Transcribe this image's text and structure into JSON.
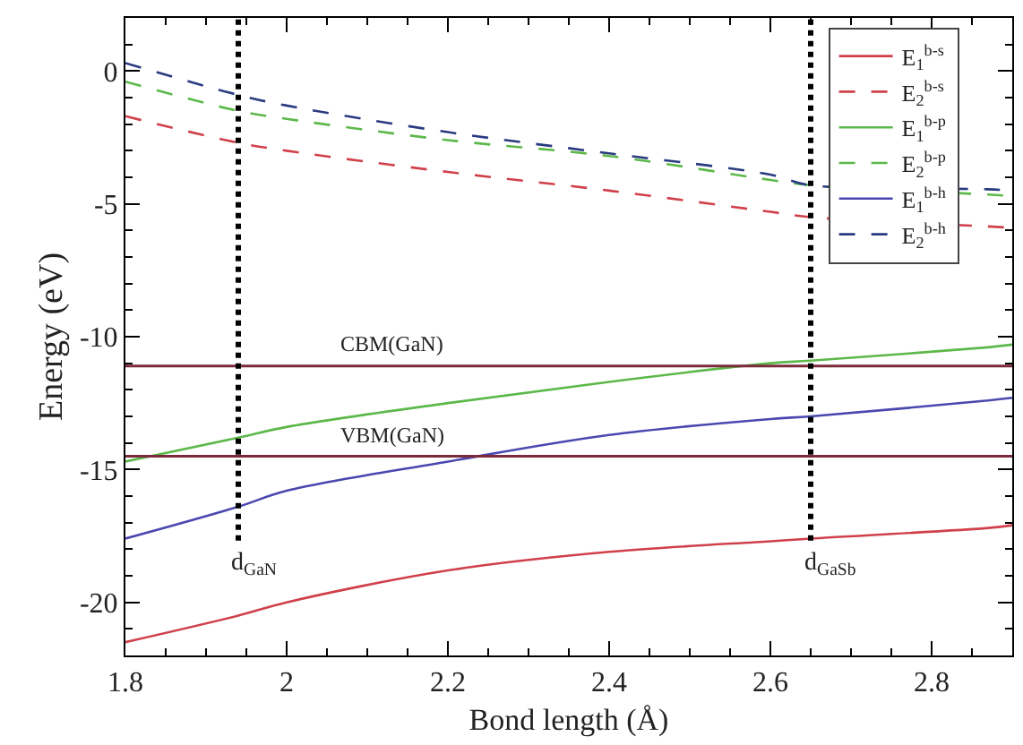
{
  "chart_data": {
    "type": "line",
    "xlabel": "Bond length (Å)",
    "ylabel": "Energy (eV)",
    "x": [
      1.8,
      1.94,
      2.0,
      2.2,
      2.4,
      2.6,
      2.65,
      2.87,
      2.9
    ],
    "xlim": [
      1.8,
      2.9
    ],
    "xticks": [
      1.8,
      {
        "value": 2.0,
        "label": "2"
      },
      2.2,
      2.4,
      2.6,
      2.8
    ],
    "ylim": [
      -22,
      2
    ],
    "yticks": [
      -20,
      -15,
      -10,
      -5,
      0
    ],
    "legend": "top right",
    "marker": "none",
    "series": [
      {
        "name": "E$_{1}$$^{b-s}$",
        "color": "#d0404a",
        "line_style": "solid",
        "values": [
          -21.5,
          -20.5,
          -20.0,
          -18.8,
          -18.1,
          -17.7,
          -17.6,
          -17.2,
          -17.1
        ]
      },
      {
        "name": "E$_{2}$$^{b-s}$",
        "color": "#d0404a",
        "line_style": "dashed",
        "values": [
          -1.7,
          -2.7,
          -3.0,
          -3.8,
          -4.5,
          -5.3,
          -5.5,
          -5.85,
          -5.9
        ]
      },
      {
        "name": "E$_{1}$$^{b-p}$",
        "color": "#5cb84a",
        "line_style": "solid",
        "values": [
          -14.7,
          -13.8,
          -13.4,
          -12.5,
          -11.7,
          -11.0,
          -10.9,
          -10.4,
          -10.3
        ]
      },
      {
        "name": "E$_{2}$$^{b-p}$",
        "color": "#5cb84a",
        "line_style": "dashed",
        "values": [
          -0.4,
          -1.5,
          -1.8,
          -2.6,
          -3.2,
          -4.1,
          -4.3,
          -4.65,
          -4.7
        ]
      },
      {
        "name": "E$_{1}$$^{b-h}$",
        "color": "#4a48b0",
        "line_style": "solid",
        "values": [
          -17.6,
          -16.4,
          -15.8,
          -14.7,
          -13.7,
          -13.1,
          -13.0,
          -12.4,
          -12.3
        ]
      },
      {
        "name": "E$_{2}$$^{b-h}$",
        "color": "#2a3a80",
        "line_style": "dashed",
        "values": [
          0.3,
          -0.9,
          -1.3,
          -2.3,
          -3.1,
          -3.9,
          -4.3,
          -4.45,
          -4.5
        ]
      }
    ],
    "ref_lines": [
      {
        "axis": "y",
        "value": -11.1,
        "label": "CBM(GaN)",
        "color": "#7a2a3a",
        "line_style": "solid"
      },
      {
        "axis": "y",
        "value": -14.5,
        "label": "VBM(GaN)",
        "color": "#7a2a3a",
        "line_style": "solid"
      },
      {
        "axis": "x",
        "value": 1.94,
        "label": "d$_{GaN}$",
        "color": "#000000",
        "line_style": "dotted"
      },
      {
        "axis": "x",
        "value": 2.65,
        "label": "d$_{GaSb}$",
        "color": "#000000",
        "line_style": "dotted"
      }
    ]
  }
}
